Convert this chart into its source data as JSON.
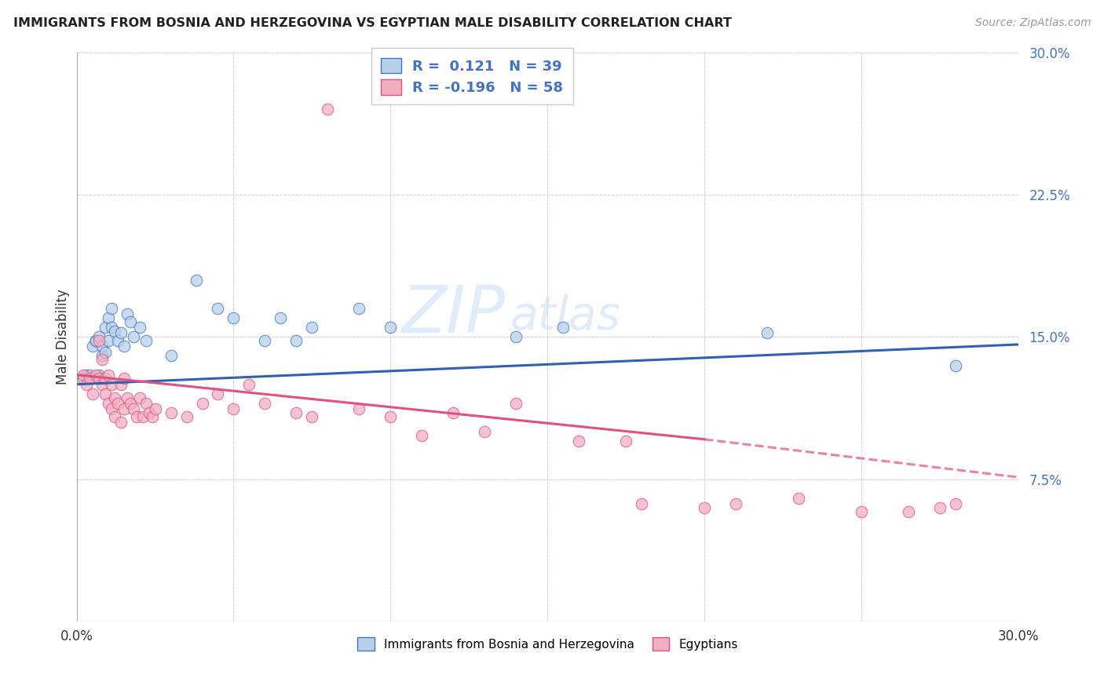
{
  "title": "IMMIGRANTS FROM BOSNIA AND HERZEGOVINA VS EGYPTIAN MALE DISABILITY CORRELATION CHART",
  "source": "Source: ZipAtlas.com",
  "ylabel": "Male Disability",
  "xlim": [
    0.0,
    0.3
  ],
  "ylim": [
    0.0,
    0.3
  ],
  "xticks": [
    0.0,
    0.05,
    0.1,
    0.15,
    0.2,
    0.25,
    0.3
  ],
  "yticks": [
    0.0,
    0.075,
    0.15,
    0.225,
    0.3
  ],
  "ytick_labels": [
    "",
    "7.5%",
    "15.0%",
    "22.5%",
    "30.0%"
  ],
  "xtick_labels": [
    "0.0%",
    "",
    "",
    "",
    "",
    "",
    "30.0%"
  ],
  "background_color": "#ffffff",
  "grid_color": "#d0d0d0",
  "blue_fill": "#b8d0ea",
  "pink_fill": "#f0b0c0",
  "blue_edge": "#4472c4",
  "pink_edge": "#e05080",
  "blue_line": "#3060b0",
  "pink_line": "#e05080",
  "legend_edge": "#cccccc",
  "r_blue": 0.121,
  "n_blue": 39,
  "r_pink": -0.196,
  "n_pink": 58,
  "blue_x": [
    0.002,
    0.003,
    0.004,
    0.005,
    0.006,
    0.006,
    0.007,
    0.007,
    0.008,
    0.008,
    0.009,
    0.009,
    0.01,
    0.01,
    0.011,
    0.011,
    0.012,
    0.013,
    0.014,
    0.015,
    0.016,
    0.017,
    0.018,
    0.02,
    0.022,
    0.03,
    0.038,
    0.045,
    0.05,
    0.06,
    0.065,
    0.07,
    0.075,
    0.09,
    0.1,
    0.14,
    0.155,
    0.22,
    0.28
  ],
  "blue_y": [
    0.128,
    0.13,
    0.13,
    0.145,
    0.148,
    0.148,
    0.13,
    0.15,
    0.14,
    0.145,
    0.155,
    0.142,
    0.148,
    0.16,
    0.155,
    0.165,
    0.153,
    0.148,
    0.152,
    0.145,
    0.162,
    0.158,
    0.15,
    0.155,
    0.148,
    0.14,
    0.18,
    0.165,
    0.16,
    0.148,
    0.16,
    0.148,
    0.155,
    0.165,
    0.155,
    0.15,
    0.155,
    0.152,
    0.135
  ],
  "pink_x": [
    0.002,
    0.003,
    0.004,
    0.005,
    0.006,
    0.007,
    0.007,
    0.008,
    0.008,
    0.009,
    0.009,
    0.01,
    0.01,
    0.011,
    0.011,
    0.012,
    0.012,
    0.013,
    0.014,
    0.014,
    0.015,
    0.015,
    0.016,
    0.017,
    0.018,
    0.019,
    0.02,
    0.021,
    0.022,
    0.023,
    0.024,
    0.025,
    0.03,
    0.035,
    0.04,
    0.045,
    0.05,
    0.055,
    0.06,
    0.07,
    0.075,
    0.08,
    0.09,
    0.1,
    0.11,
    0.12,
    0.13,
    0.14,
    0.16,
    0.175,
    0.18,
    0.2,
    0.21,
    0.23,
    0.25,
    0.265,
    0.275,
    0.28
  ],
  "pink_y": [
    0.13,
    0.125,
    0.128,
    0.12,
    0.13,
    0.128,
    0.148,
    0.125,
    0.138,
    0.12,
    0.128,
    0.115,
    0.13,
    0.112,
    0.125,
    0.118,
    0.108,
    0.115,
    0.105,
    0.125,
    0.112,
    0.128,
    0.118,
    0.115,
    0.112,
    0.108,
    0.118,
    0.108,
    0.115,
    0.11,
    0.108,
    0.112,
    0.11,
    0.108,
    0.115,
    0.12,
    0.112,
    0.125,
    0.115,
    0.11,
    0.108,
    0.27,
    0.112,
    0.108,
    0.098,
    0.11,
    0.1,
    0.115,
    0.095,
    0.095,
    0.062,
    0.06,
    0.062,
    0.065,
    0.058,
    0.058,
    0.06,
    0.062
  ]
}
